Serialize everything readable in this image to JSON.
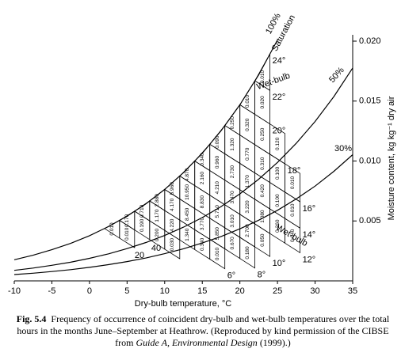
{
  "chart_data": {
    "type": "line",
    "x_label": "Dry-bulb temperature, °C",
    "y2_label": "Moisture content, kg kg⁻¹ dry air",
    "xlim": [
      -10,
      35
    ],
    "xticks": [
      -10,
      -5,
      0,
      5,
      10,
      15,
      20,
      25,
      30,
      35
    ],
    "ylim": [
      0,
      0.02
    ],
    "yticks": [
      0.005,
      {
        "value": 0.01,
        "label": "0.010"
      },
      0.015,
      {
        "value": 0.02,
        "label": "0.020"
      }
    ],
    "x": [
      -10,
      -7.5,
      -5,
      -2.5,
      0,
      2.5,
      5,
      7.5,
      10,
      12.5,
      15,
      17.5,
      20,
      22.5,
      25,
      27.5,
      30,
      32.5,
      35
    ],
    "series": [
      {
        "color": "#000000",
        "values": [
          0.00176,
          0.00214,
          0.0026,
          0.00313,
          0.00377,
          0.00452,
          0.0054,
          0.00643,
          0.00763,
          0.00903,
          0.01065,
          0.01253,
          0.01469,
          0.01719,
          0.0201,
          null,
          null,
          null,
          null
        ]
      },
      {
        "color": "#000000",
        "values": [
          0.00088,
          0.00107,
          0.0013,
          0.00156,
          0.00188,
          0.00225,
          0.00269,
          0.0032,
          0.00379,
          0.00448,
          0.00528,
          0.0062,
          0.00726,
          0.00848,
          0.00988,
          0.01148,
          0.0133,
          0.01538,
          0.01776
        ]
      },
      {
        "color": "#000000",
        "values": [
          0.00053,
          0.00064,
          0.00078,
          0.00094,
          0.00113,
          0.00135,
          0.00161,
          0.00191,
          0.00227,
          0.00268,
          0.00316,
          0.0037,
          0.00434,
          0.00506,
          0.00589,
          0.00684,
          0.00791,
          0.00914,
          0.01053
        ]
      }
    ],
    "wet_bulb_lines": [
      {
        "value": 2,
        "label": null
      },
      {
        "value": 4,
        "label": null
      },
      {
        "value": 6,
        "label": "6°"
      },
      {
        "value": 8,
        "label": "8°"
      },
      {
        "value": 10,
        "label": "10°"
      },
      {
        "value": 12,
        "label": "12°"
      },
      {
        "value": 14,
        "label": "14°"
      },
      {
        "value": 16,
        "label": "16°"
      },
      {
        "value": 18,
        "label": "18°"
      },
      {
        "value": 20,
        "label": "20°"
      },
      {
        "value": 22,
        "label": "22°"
      },
      {
        "value": 24,
        "label": "24°"
      }
    ],
    "cells": [
      [
        "0.010",
        "0.010"
      ],
      [
        "0.170",
        "0.190",
        "0.200",
        "0.030"
      ],
      [
        "0.710",
        "1.170",
        "4.220",
        "1.340",
        "0.340",
        "0.010"
      ],
      [
        "2.880",
        "4.170",
        "8.450",
        "3.770",
        "5.850",
        "0.670",
        "0.180"
      ],
      [
        "5.960",
        "10.950",
        "8.830",
        "5.710",
        "3.010",
        "2.700",
        "0.050"
      ],
      [
        "4.870",
        "2.160",
        "4.210",
        "3.470",
        "3.220",
        "1.080",
        "0.260",
        "0.040"
      ],
      [
        "0.340",
        "0.960",
        "2.730",
        "1.370",
        "0.420",
        "0.100",
        "0.010"
      ],
      [
        "0.090",
        "1.320",
        "0.770",
        "0.310",
        "0.100",
        "0.010"
      ],
      [
        "0.250",
        "0.320",
        "0.250",
        "0.120"
      ],
      [
        "0.010",
        "0.020"
      ],
      [
        "0.010"
      ]
    ],
    "annotations": [
      "100%",
      "Saturation",
      "50%",
      "30%",
      "Wet-bulb",
      "Wet-bulb",
      "20",
      "40"
    ]
  },
  "caption": {
    "label": "Fig. 5.4",
    "text": "Frequency of occurrence of coincident dry-bulb and wet-bulb temperatures over the total hours in the months June–September at Heathrow. (Reproduced by kind permission of the CIBSE from",
    "source": "Guide A, Environmental Design",
    "end": "(1999).)"
  }
}
